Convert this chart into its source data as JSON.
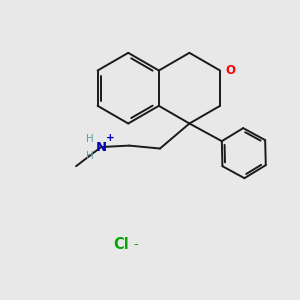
{
  "background_color": "#e8e8e8",
  "line_color": "#1a1a1a",
  "oxygen_color": "#ff0000",
  "nitrogen_color": "#0000bb",
  "chloride_color": "#00aa00",
  "fig_width": 3.0,
  "fig_height": 3.0,
  "dpi": 100,
  "o_text": "O",
  "n_text": "N",
  "h_text": "H",
  "plus_text": "+",
  "cl_text": "Cl",
  "minus_text": "-"
}
